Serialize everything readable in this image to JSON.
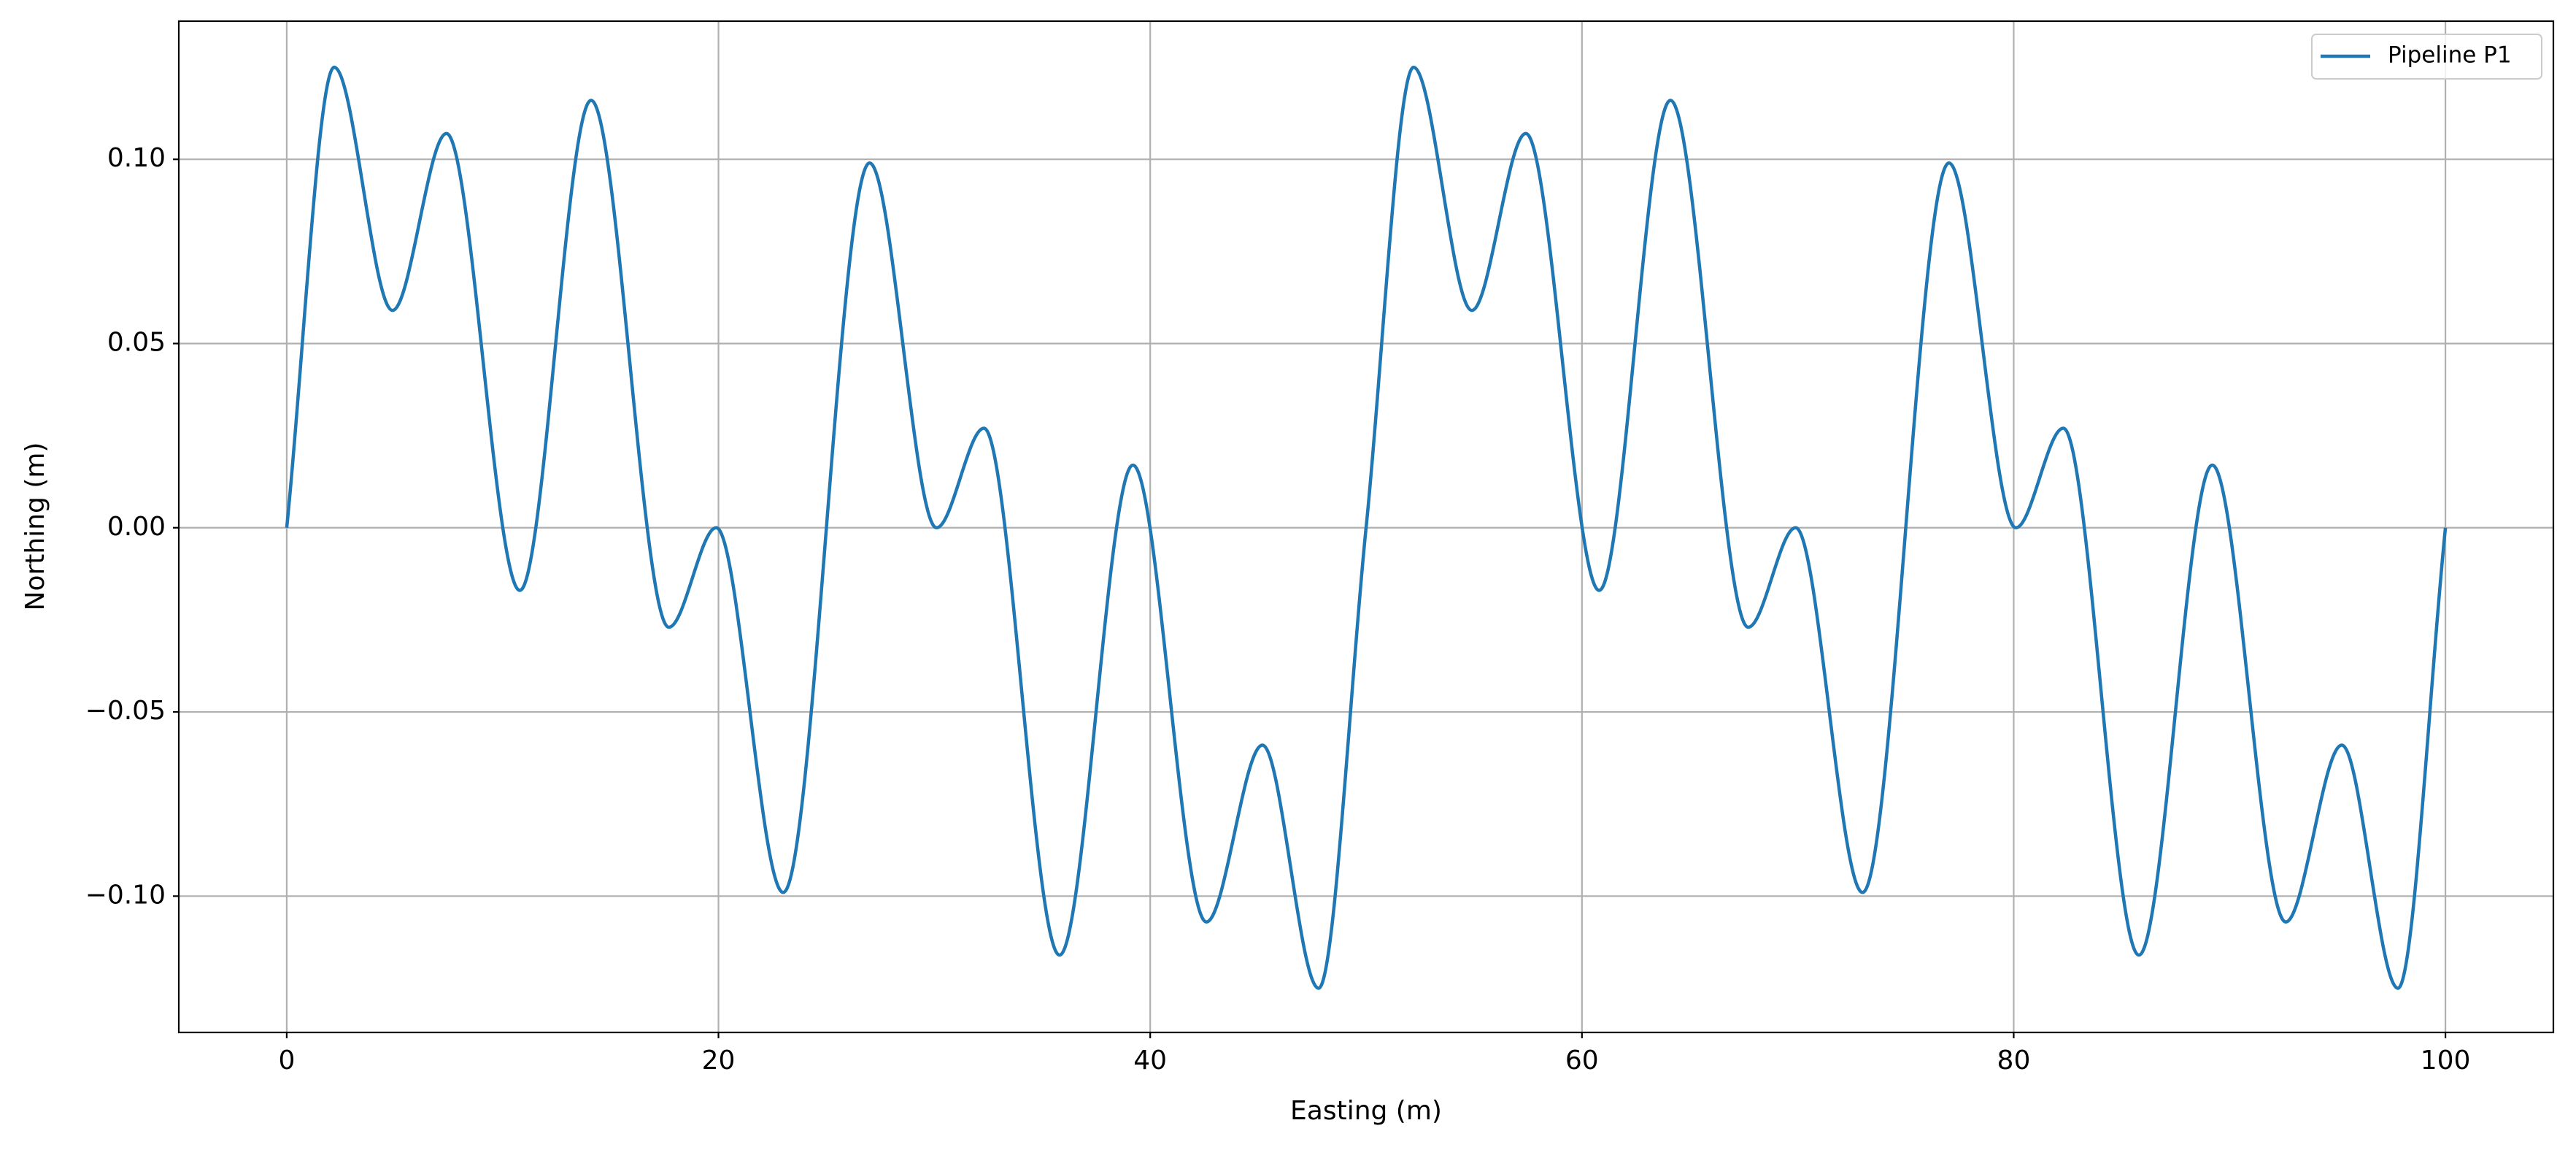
{
  "chart_data": {
    "type": "line",
    "xlabel": "Easting (m)",
    "ylabel": "Northing (m)",
    "x": [
      0,
      2.2,
      4.9,
      7.4,
      10.8,
      14.1,
      17.7,
      19.9,
      23.0,
      27.0,
      30.1,
      32.3,
      35.8,
      39.2,
      42.6,
      45.2,
      47.8,
      50,
      52.2,
      54.9,
      57.4,
      60.8,
      64.1,
      67.7,
      69.9,
      73.0,
      77.0,
      80.1,
      82.3,
      85.8,
      89.2,
      92.6,
      95.2,
      97.8,
      100
    ],
    "series": [
      {
        "name": "Pipeline P1",
        "color": "#1f77b4",
        "values": [
          0,
          0.125,
          0.059,
          0.107,
          -0.017,
          0.116,
          -0.027,
          0.0,
          -0.099,
          0.099,
          0.0,
          0.027,
          -0.116,
          0.017,
          -0.107,
          -0.059,
          -0.125,
          0,
          0.125,
          0.059,
          0.107,
          -0.017,
          0.116,
          -0.027,
          0.0,
          -0.099,
          0.099,
          0.0,
          0.027,
          -0.116,
          0.017,
          -0.107,
          -0.059,
          -0.125,
          0
        ]
      }
    ],
    "xlim": [
      -5,
      105
    ],
    "xticks": [
      0,
      20,
      40,
      60,
      80,
      100
    ],
    "ylim": [
      -0.137,
      0.1375
    ],
    "yticks": [
      {
        "value": -0.1,
        "label": "−0.10"
      },
      {
        "value": -0.05,
        "label": "−0.05"
      },
      {
        "value": 0,
        "label": "0.00"
      },
      {
        "value": 0.05,
        "label": "0.05"
      },
      {
        "value": 0.1,
        "label": "0.10"
      }
    ],
    "grid": true,
    "legend": "upper right"
  }
}
